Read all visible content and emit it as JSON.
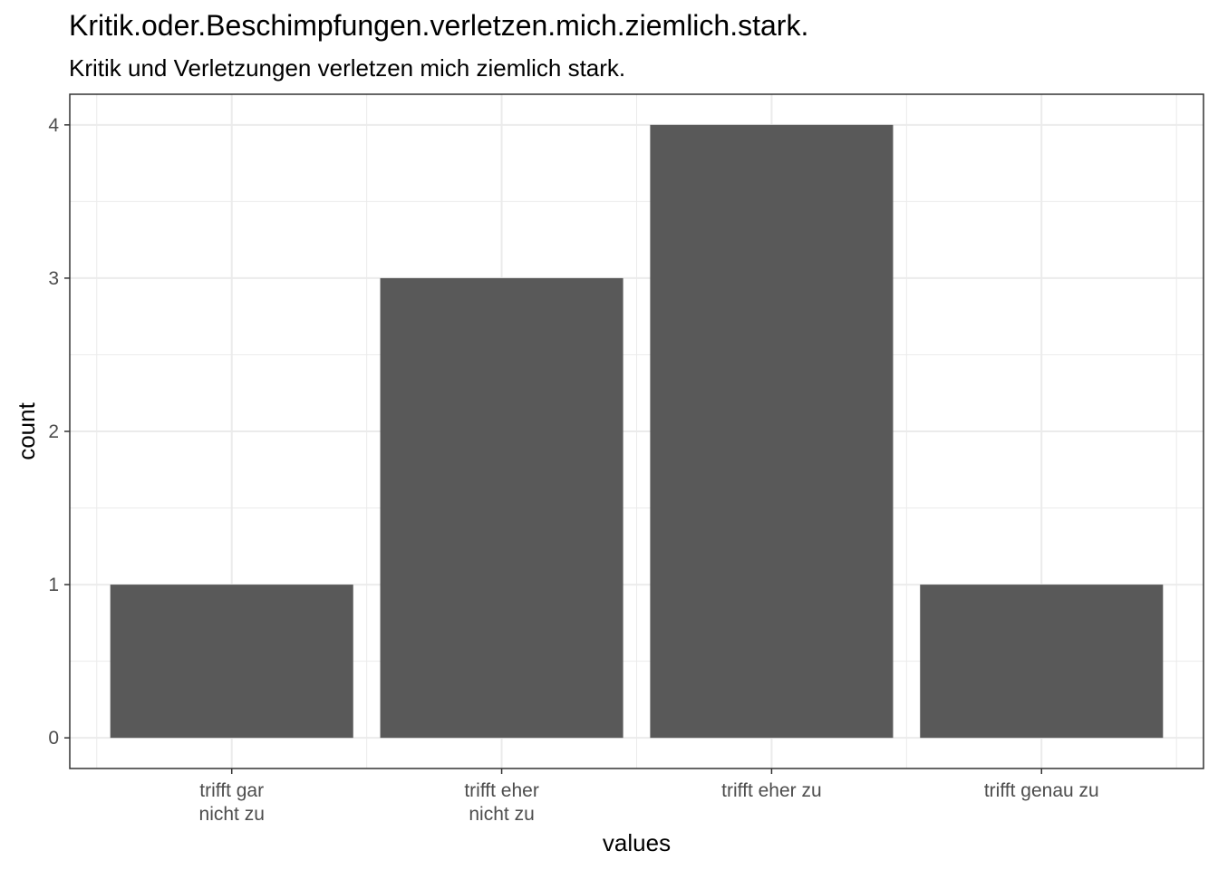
{
  "chart_data": {
    "type": "bar",
    "title": "Kritik.oder.Beschimpfungen.verletzen.mich.ziemlich.stark.",
    "subtitle": "Kritik und Verletzungen verletzen mich ziemlich stark.",
    "xlabel": "values",
    "ylabel": "count",
    "categories": [
      [
        "trifft gar",
        "nicht zu"
      ],
      [
        "trifft eher",
        "nicht zu"
      ],
      [
        "trifft eher zu"
      ],
      [
        "trifft genau zu"
      ]
    ],
    "values": [
      1,
      3,
      4,
      1
    ],
    "yticks": [
      0,
      1,
      2,
      3,
      4
    ],
    "ylim": [
      -0.2,
      4.2
    ],
    "grid": true,
    "legend": "none",
    "bar_color": "#595959",
    "grid_color": "#ebebeb",
    "border_color": "#333333"
  }
}
